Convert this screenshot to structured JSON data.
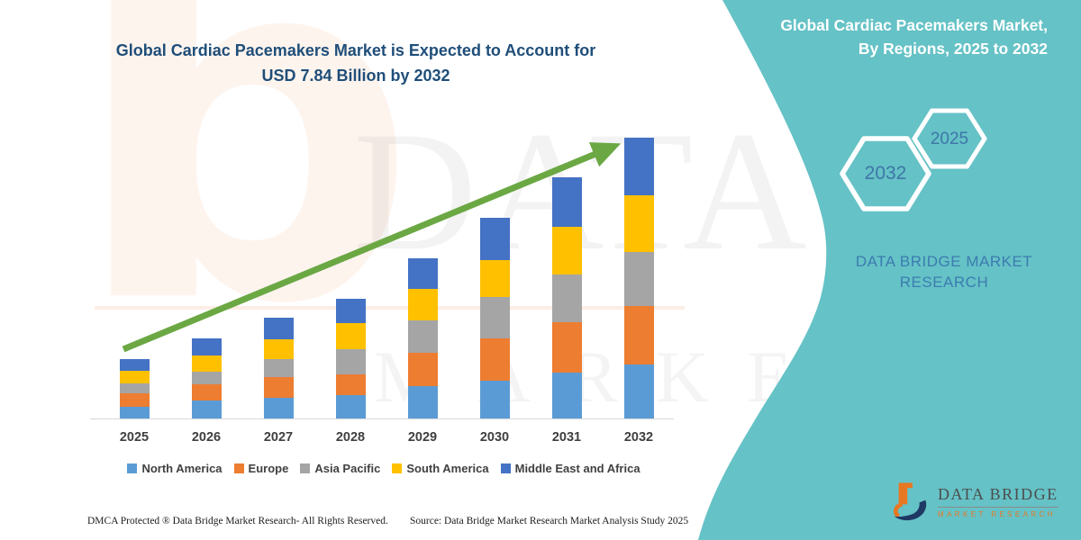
{
  "banner": {
    "title_line1": "Global Cardiac Pacemakers Market is Expected to Account for",
    "title_line2": "USD 7.84 Billion by 2032",
    "panel": {
      "title_line1": "Global Cardiac Pacemakers Market,",
      "title_line2": "By Regions, 2025 to 2032",
      "hexagon_left_label": "2032",
      "hexagon_right_label": "2025",
      "brand_line1": "DATA BRIDGE MARKET",
      "brand_line2": "RESEARCH"
    },
    "watermark": {
      "letter": "b",
      "line1": "DATA BRIDGE",
      "line2": "MARKET RESEARCH"
    },
    "footer": {
      "left": "DMCA Protected ® Data Bridge Market Research-  All Rights Reserved.",
      "right": "Source: Data Bridge Market Research  Market Analysis Study 2025"
    },
    "logo": {
      "name": "DATA BRIDGE",
      "subtitle": "MARKET RESEARCH"
    }
  },
  "colors": {
    "teal_panel": "#5FC0C4",
    "title_blue": "#1F4E79",
    "panel_text_blue": "#3C7CB0",
    "hexagon_year_blue": "#3E76A8",
    "arrow_green": "#6BA844",
    "axis_label_gray": "#3f3f3f",
    "logo_orange": "#E87722",
    "logo_navy": "#1F3864"
  },
  "chart_data": {
    "type": "bar",
    "stacked": true,
    "title": "Global Cardiac Pacemakers Market is Expected to Account for USD 7.84 Billion by 2032",
    "unit": "USD Billion",
    "categories": [
      "2025",
      "2026",
      "2027",
      "2028",
      "2029",
      "2030",
      "2031",
      "2032"
    ],
    "series": [
      {
        "name": "North America",
        "color": "#5B9BD5",
        "values": [
          0.32,
          0.5,
          0.58,
          0.66,
          0.9,
          1.06,
          1.28,
          1.51
        ]
      },
      {
        "name": "Europe",
        "color": "#ED7D31",
        "values": [
          0.38,
          0.46,
          0.59,
          0.59,
          0.93,
          1.18,
          1.41,
          1.63
        ]
      },
      {
        "name": "Asia Pacific",
        "color": "#A5A5A5",
        "values": [
          0.28,
          0.35,
          0.51,
          0.7,
          0.9,
          1.16,
          1.33,
          1.51
        ]
      },
      {
        "name": "South America",
        "color": "#FFC000",
        "values": [
          0.35,
          0.46,
          0.55,
          0.73,
          0.88,
          1.03,
          1.33,
          1.58
        ]
      },
      {
        "name": "Middle East and Africa",
        "color": "#4472C4",
        "values": [
          0.33,
          0.48,
          0.6,
          0.69,
          0.85,
          1.18,
          1.38,
          1.61
        ]
      }
    ],
    "totals": [
      1.66,
      2.25,
      2.83,
      3.37,
      4.46,
      5.61,
      6.73,
      7.84
    ],
    "ylim": [
      0,
      8
    ],
    "grid": false,
    "y_axis_visible": false,
    "legend_position": "bottom",
    "trend_arrow": true
  }
}
